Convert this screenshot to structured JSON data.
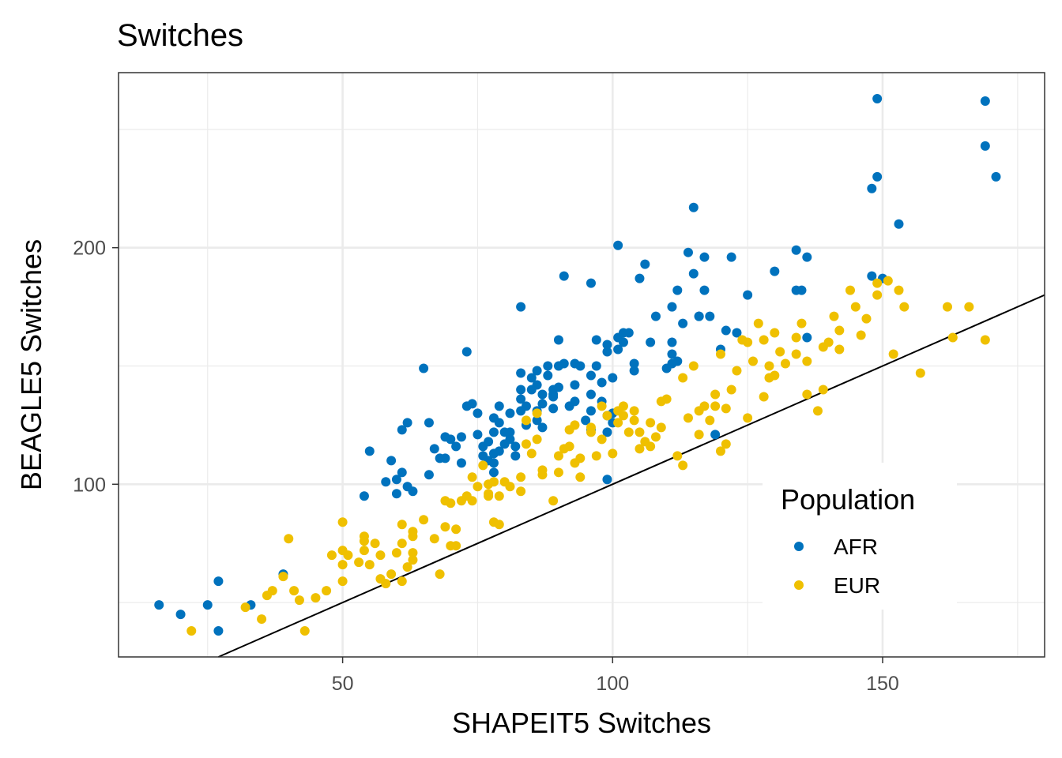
{
  "chart_data": {
    "type": "scatter",
    "title": "Switches",
    "xlabel": "SHAPEIT5 Switches",
    "ylabel": "BEAGLE5 Switches",
    "xlim": [
      8.5,
      180
    ],
    "ylim": [
      27,
      274
    ],
    "x_ticks": [
      50,
      100,
      150
    ],
    "y_ticks": [
      100,
      200
    ],
    "x_tick_labels": [
      "50",
      "100",
      "150"
    ],
    "y_tick_labels": [
      "100",
      "200"
    ],
    "grid": true,
    "reference_line": {
      "slope": 1,
      "intercept": 0,
      "color": "#000000"
    },
    "legend": {
      "title": "Population",
      "position": "inside-bottom-right"
    },
    "series": [
      {
        "name": "AFR",
        "color": "#0072BD",
        "points": [
          [
            16,
            49
          ],
          [
            20,
            45
          ],
          [
            25,
            49
          ],
          [
            27,
            59
          ],
          [
            27,
            38
          ],
          [
            33,
            49
          ],
          [
            39,
            62
          ],
          [
            54,
            95
          ],
          [
            55,
            114
          ],
          [
            58,
            101
          ],
          [
            59,
            110
          ],
          [
            60,
            96
          ],
          [
            61,
            105
          ],
          [
            60,
            102
          ],
          [
            62,
            99
          ],
          [
            63,
            97
          ],
          [
            61,
            123
          ],
          [
            62,
            126
          ],
          [
            65,
            149
          ],
          [
            66,
            126
          ],
          [
            66,
            104
          ],
          [
            67,
            115
          ],
          [
            68,
            111
          ],
          [
            69,
            111
          ],
          [
            69,
            120
          ],
          [
            70,
            119
          ],
          [
            71,
            116
          ],
          [
            72,
            120
          ],
          [
            72,
            109
          ],
          [
            73,
            133
          ],
          [
            73,
            156
          ],
          [
            74,
            134
          ],
          [
            75,
            130
          ],
          [
            75,
            121
          ],
          [
            76,
            116
          ],
          [
            76,
            112
          ],
          [
            77,
            118
          ],
          [
            77,
            110
          ],
          [
            78,
            113
          ],
          [
            78,
            122
          ],
          [
            78,
            128
          ],
          [
            78,
            109
          ],
          [
            78,
            105
          ],
          [
            79,
            133
          ],
          [
            79,
            126
          ],
          [
            79,
            114
          ],
          [
            80,
            122
          ],
          [
            80,
            117
          ],
          [
            81,
            130
          ],
          [
            81,
            122
          ],
          [
            81,
            119
          ],
          [
            82,
            116
          ],
          [
            82,
            112
          ],
          [
            83,
            175
          ],
          [
            83,
            147
          ],
          [
            83,
            140
          ],
          [
            83,
            136
          ],
          [
            83,
            131
          ],
          [
            84,
            133
          ],
          [
            84,
            125
          ],
          [
            85,
            145
          ],
          [
            85,
            140
          ],
          [
            86,
            148
          ],
          [
            86,
            142
          ],
          [
            86,
            131
          ],
          [
            86,
            127
          ],
          [
            87,
            138
          ],
          [
            87,
            134
          ],
          [
            87,
            124
          ],
          [
            88,
            150
          ],
          [
            88,
            146
          ],
          [
            89,
            140
          ],
          [
            89,
            138
          ],
          [
            89,
            137
          ],
          [
            89,
            132
          ],
          [
            90,
            161
          ],
          [
            90,
            150
          ],
          [
            90,
            141
          ],
          [
            91,
            188
          ],
          [
            91,
            151
          ],
          [
            92,
            133
          ],
          [
            93,
            151
          ],
          [
            93,
            142
          ],
          [
            93,
            135
          ],
          [
            94,
            150
          ],
          [
            95,
            127
          ],
          [
            96,
            185
          ],
          [
            96,
            146
          ],
          [
            96,
            138
          ],
          [
            96,
            131
          ],
          [
            96,
            123
          ],
          [
            97,
            161
          ],
          [
            97,
            150
          ],
          [
            98,
            143
          ],
          [
            98,
            135
          ],
          [
            99,
            129
          ],
          [
            99,
            122
          ],
          [
            99,
            102
          ],
          [
            99,
            159
          ],
          [
            99,
            156
          ],
          [
            100,
            145
          ],
          [
            100,
            130
          ],
          [
            100,
            126
          ],
          [
            101,
            201
          ],
          [
            101,
            162
          ],
          [
            101,
            157
          ],
          [
            102,
            160
          ],
          [
            102,
            164
          ],
          [
            103,
            164
          ],
          [
            104,
            148
          ],
          [
            104,
            151
          ],
          [
            105,
            187
          ],
          [
            106,
            193
          ],
          [
            107,
            160
          ],
          [
            108,
            171
          ],
          [
            110,
            149
          ],
          [
            111,
            151
          ],
          [
            111,
            175
          ],
          [
            111,
            160
          ],
          [
            111,
            155
          ],
          [
            112,
            152
          ],
          [
            112,
            182
          ],
          [
            113,
            168
          ],
          [
            114,
            198
          ],
          [
            115,
            217
          ],
          [
            115,
            189
          ],
          [
            116,
            171
          ],
          [
            116,
            171
          ],
          [
            117,
            196
          ],
          [
            117,
            182
          ],
          [
            118,
            171
          ],
          [
            119,
            121
          ],
          [
            120,
            157
          ],
          [
            121,
            165
          ],
          [
            122,
            196
          ],
          [
            123,
            164
          ],
          [
            125,
            180
          ],
          [
            130,
            190
          ],
          [
            134,
            199
          ],
          [
            134,
            182
          ],
          [
            136,
            196
          ],
          [
            136,
            162
          ],
          [
            135,
            182
          ],
          [
            148,
            188
          ],
          [
            148,
            225
          ],
          [
            149,
            230
          ],
          [
            149,
            263
          ],
          [
            150,
            187
          ],
          [
            153,
            210
          ],
          [
            169,
            262
          ],
          [
            169,
            243
          ],
          [
            171,
            230
          ]
        ]
      },
      {
        "name": "EUR",
        "color": "#EFC000",
        "points": [
          [
            22,
            38
          ],
          [
            32,
            48
          ],
          [
            35,
            43
          ],
          [
            36,
            53
          ],
          [
            37,
            55
          ],
          [
            39,
            61
          ],
          [
            40,
            77
          ],
          [
            41,
            55
          ],
          [
            42,
            51
          ],
          [
            43,
            38
          ],
          [
            45,
            52
          ],
          [
            47,
            55
          ],
          [
            48,
            70
          ],
          [
            50,
            59
          ],
          [
            50,
            66
          ],
          [
            50,
            72
          ],
          [
            50,
            84
          ],
          [
            51,
            70
          ],
          [
            53,
            67
          ],
          [
            54,
            72
          ],
          [
            54,
            78
          ],
          [
            54,
            76
          ],
          [
            55,
            66
          ],
          [
            56,
            75
          ],
          [
            57,
            70
          ],
          [
            57,
            60
          ],
          [
            58,
            58
          ],
          [
            59,
            62
          ],
          [
            61,
            75
          ],
          [
            60,
            71
          ],
          [
            61,
            83
          ],
          [
            61,
            59
          ],
          [
            62,
            65
          ],
          [
            63,
            68
          ],
          [
            63,
            71
          ],
          [
            63,
            80
          ],
          [
            63,
            78
          ],
          [
            65,
            85
          ],
          [
            67,
            77
          ],
          [
            68,
            62
          ],
          [
            69,
            93
          ],
          [
            69,
            82
          ],
          [
            70,
            74
          ],
          [
            70,
            92
          ],
          [
            71,
            81
          ],
          [
            71,
            74
          ],
          [
            72,
            93
          ],
          [
            73,
            95
          ],
          [
            74,
            93
          ],
          [
            74,
            103
          ],
          [
            75,
            99
          ],
          [
            76,
            108
          ],
          [
            77,
            95
          ],
          [
            77,
            96
          ],
          [
            77,
            100
          ],
          [
            78,
            101
          ],
          [
            78,
            84
          ],
          [
            79,
            83
          ],
          [
            79,
            95
          ],
          [
            80,
            101
          ],
          [
            81,
            99
          ],
          [
            83,
            97
          ],
          [
            83,
            103
          ],
          [
            84,
            117
          ],
          [
            84,
            127
          ],
          [
            85,
            113
          ],
          [
            86,
            130
          ],
          [
            86,
            119
          ],
          [
            87,
            106
          ],
          [
            87,
            104
          ],
          [
            89,
            93
          ],
          [
            90,
            105
          ],
          [
            90,
            112
          ],
          [
            91,
            115
          ],
          [
            92,
            116
          ],
          [
            92,
            123
          ],
          [
            93,
            109
          ],
          [
            93,
            125
          ],
          [
            94,
            111
          ],
          [
            94,
            103
          ],
          [
            96,
            124
          ],
          [
            96,
            122
          ],
          [
            97,
            112
          ],
          [
            98,
            133
          ],
          [
            98,
            119
          ],
          [
            99,
            129
          ],
          [
            100,
            113
          ],
          [
            101,
            131
          ],
          [
            101,
            126
          ],
          [
            102,
            133
          ],
          [
            102,
            129
          ],
          [
            103,
            122
          ],
          [
            104,
            131
          ],
          [
            104,
            127
          ],
          [
            105,
            122
          ],
          [
            105,
            115
          ],
          [
            106,
            118
          ],
          [
            107,
            126
          ],
          [
            107,
            116
          ],
          [
            108,
            120
          ],
          [
            109,
            124
          ],
          [
            109,
            135
          ],
          [
            110,
            136
          ],
          [
            112,
            112
          ],
          [
            113,
            108
          ],
          [
            113,
            145
          ],
          [
            114,
            128
          ],
          [
            115,
            150
          ],
          [
            116,
            131
          ],
          [
            116,
            121
          ],
          [
            117,
            133
          ],
          [
            118,
            127
          ],
          [
            119,
            138
          ],
          [
            119,
            133
          ],
          [
            120,
            155
          ],
          [
            120,
            114
          ],
          [
            121,
            117
          ],
          [
            121,
            132
          ],
          [
            122,
            140
          ],
          [
            123,
            148
          ],
          [
            124,
            161
          ],
          [
            125,
            128
          ],
          [
            125,
            160
          ],
          [
            126,
            152
          ],
          [
            127,
            168
          ],
          [
            128,
            161
          ],
          [
            128,
            137
          ],
          [
            129,
            145
          ],
          [
            129,
            150
          ],
          [
            130,
            146
          ],
          [
            130,
            164
          ],
          [
            131,
            156
          ],
          [
            132,
            151
          ],
          [
            134,
            155
          ],
          [
            134,
            162
          ],
          [
            135,
            168
          ],
          [
            136,
            152
          ],
          [
            136,
            138
          ],
          [
            138,
            131
          ],
          [
            139,
            158
          ],
          [
            139,
            140
          ],
          [
            140,
            160
          ],
          [
            141,
            171
          ],
          [
            142,
            165
          ],
          [
            142,
            157
          ],
          [
            144,
            182
          ],
          [
            145,
            175
          ],
          [
            146,
            163
          ],
          [
            147,
            170
          ],
          [
            149,
            180
          ],
          [
            149,
            185
          ],
          [
            151,
            186
          ],
          [
            152,
            155
          ],
          [
            153,
            182
          ],
          [
            154,
            175
          ],
          [
            157,
            147
          ],
          [
            162,
            175
          ],
          [
            163,
            162
          ],
          [
            166,
            175
          ],
          [
            169,
            161
          ]
        ]
      }
    ]
  }
}
